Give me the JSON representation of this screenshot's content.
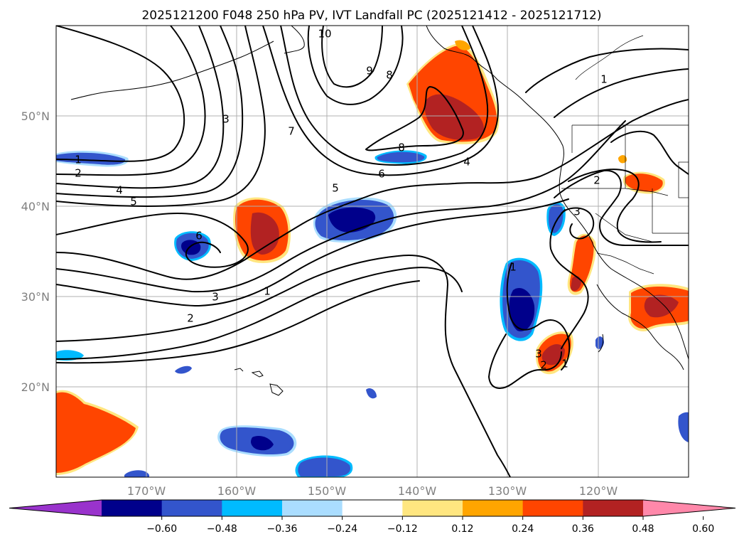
{
  "title": "2025121200 F048 250 hPa PV, IVT Landfall PC (2025121412 - 2025121712)",
  "map": {
    "lon_range": [
      -180,
      -110
    ],
    "lat_range": [
      10,
      60
    ],
    "lat_labels": [
      "20°N",
      "30°N",
      "40°N",
      "50°N"
    ],
    "lon_labels": [
      "170°W",
      "160°W",
      "150°W",
      "140°W",
      "130°W",
      "120°W"
    ],
    "gridlines": true
  },
  "contour_labels": [
    "1",
    "2",
    "3",
    "4",
    "5",
    "6",
    "7",
    "8",
    "9",
    "10"
  ],
  "colorbar": {
    "ticks": [
      "−0.60",
      "−0.48",
      "−0.36",
      "−0.24",
      "−0.12",
      "0.12",
      "0.24",
      "0.36",
      "0.48",
      "0.60"
    ],
    "colors": [
      "#9933cc",
      "#00008b",
      "#3355cc",
      "#00bbff",
      "#aaddff",
      "#ffffff",
      "#ffe680",
      "#ffa500",
      "#ff4500",
      "#b22222",
      "#ff88aa"
    ],
    "extend": "both"
  },
  "colors": {
    "neg_strong": "#00008b",
    "neg_mid": "#3355cc",
    "neg_light": "#00bbff",
    "neg_faint": "#aaddff",
    "pos_faint": "#ffe680",
    "pos_light": "#ffa500",
    "pos_mid": "#ff4500",
    "pos_strong": "#b22222"
  }
}
